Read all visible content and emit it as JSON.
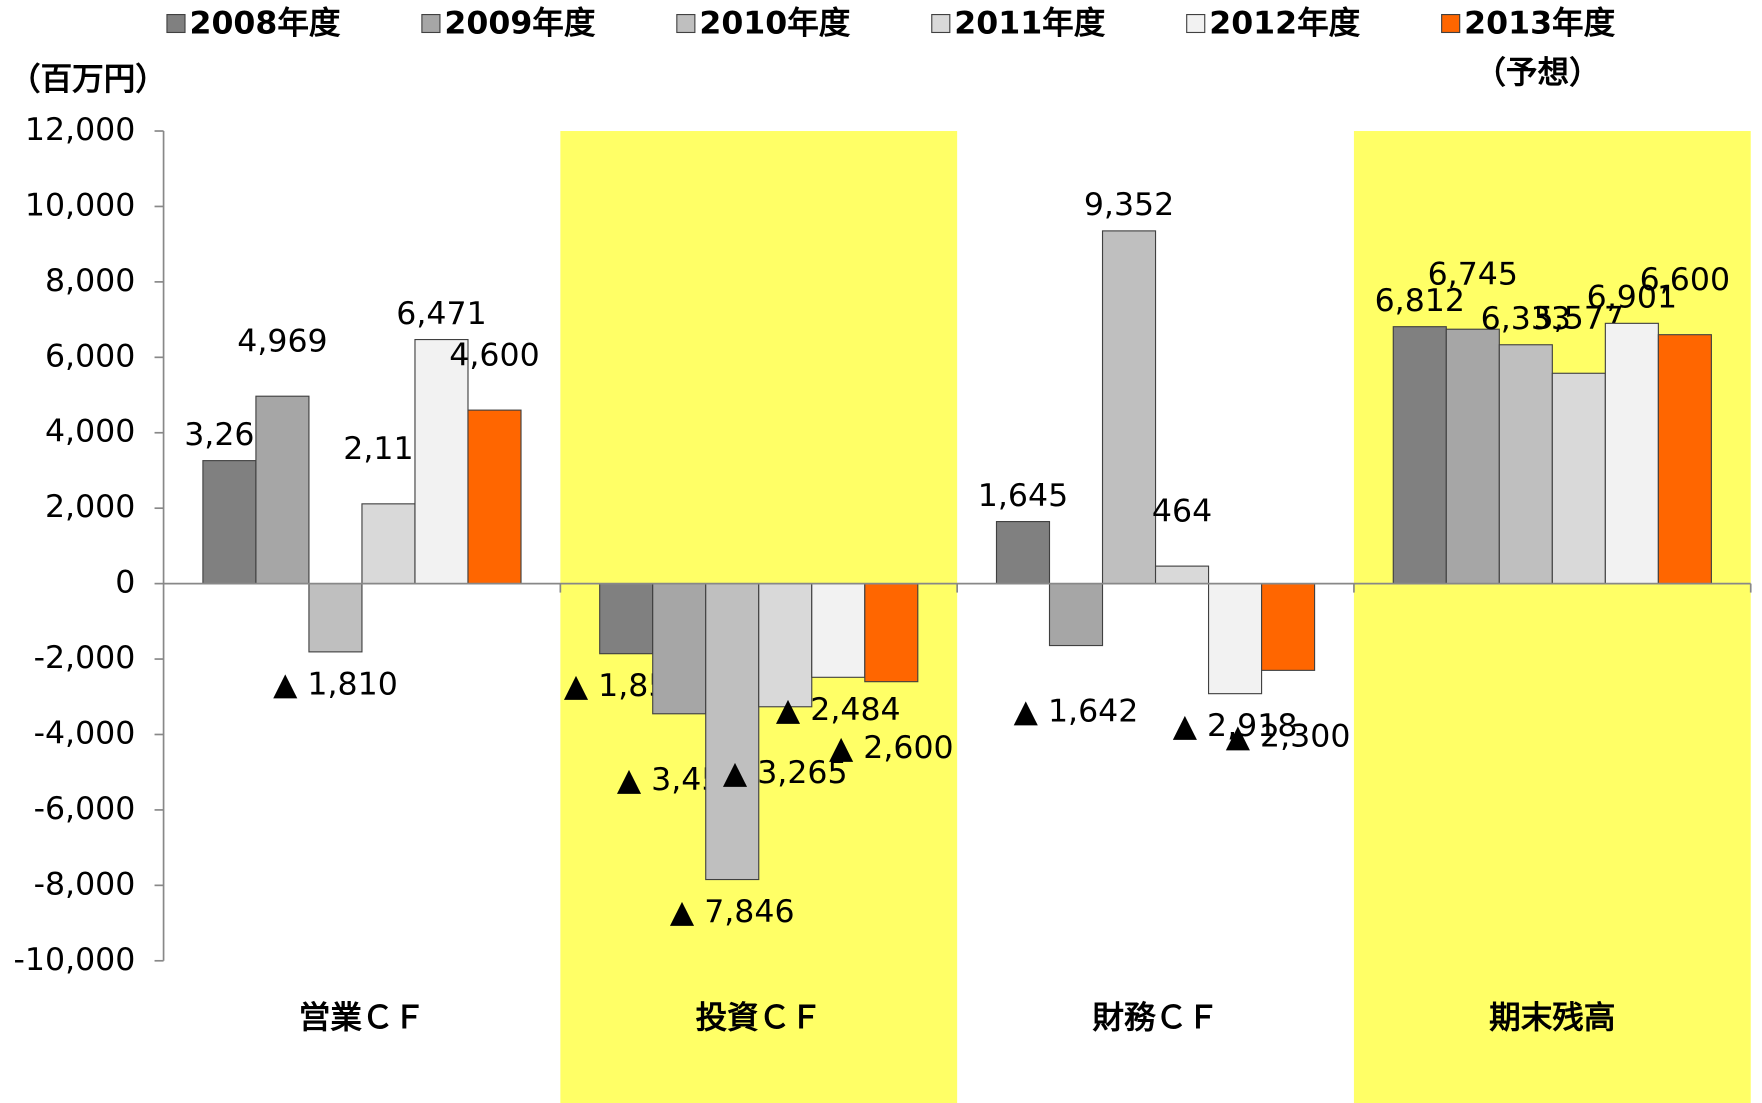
{
  "chart_data": {
    "type": "bar",
    "y_label": "（百万円）",
    "categories": [
      "営業ＣＦ",
      "投資ＣＦ",
      "財務ＣＦ",
      "期末残高"
    ],
    "series": [
      {
        "name": "2008年度",
        "color": "#808080",
        "values": [
          3261,
          -1858,
          1645,
          6812
        ],
        "value_labels": [
          "3,261",
          "▲ 1,858",
          "1,645",
          "6,812"
        ],
        "label_color": "#000000"
      },
      {
        "name": "2009年度",
        "color": "#a6a6a6",
        "values": [
          4969,
          -3451,
          -1642,
          6745
        ],
        "value_labels": [
          "4,969",
          "▲ 3,451",
          "▲ 1,642",
          "6,745"
        ],
        "label_color": "#000000"
      },
      {
        "name": "2010年度",
        "color": "#bfbfbf",
        "values": [
          -1810,
          -7846,
          9352,
          6333
        ],
        "value_labels": [
          "▲ 1,810",
          "▲ 7,846",
          "9,352",
          "6,333"
        ],
        "label_color": "#000000"
      },
      {
        "name": "2011年度",
        "color": "#d9d9d9",
        "values": [
          2115,
          -3265,
          464,
          5577
        ],
        "value_labels": [
          "2,115",
          "▲ 3,265",
          "464",
          "5,577"
        ],
        "label_color": "#000000"
      },
      {
        "name": "2012年度",
        "color": "#f2f2f2",
        "values": [
          6471,
          -2484,
          -2918,
          6901
        ],
        "value_labels": [
          "6,471",
          "▲ 2,484",
          "▲ 2,918",
          "6,901"
        ],
        "label_color": "#000000"
      },
      {
        "name": "2013年度",
        "note": "（予想）",
        "color": "#ff6600",
        "values": [
          4600,
          -2600,
          -2300,
          6600
        ],
        "value_labels": [
          "4,600",
          "▲ 2,600",
          "▲ 2,300",
          "6,600"
        ],
        "label_color": "#c00000"
      }
    ],
    "ylim": [
      -10000,
      12000
    ],
    "yticks": [
      {
        "value": -10000,
        "label": "-10,000"
      },
      {
        "value": -8000,
        "label": "-8,000"
      },
      {
        "value": -6000,
        "label": "-6,000"
      },
      {
        "value": -4000,
        "label": "-4,000"
      },
      {
        "value": -2000,
        "label": "-2,000"
      },
      0,
      {
        "value": 2000,
        "label": "2,000"
      },
      {
        "value": 4000,
        "label": "4,000"
      },
      {
        "value": 6000,
        "label": "6,000"
      },
      {
        "value": 8000,
        "label": "8,000"
      },
      {
        "value": 10000,
        "label": "10,000"
      },
      {
        "value": 12000,
        "label": "12,000"
      }
    ],
    "legend": "top",
    "highlight_color": "#ffff66"
  }
}
